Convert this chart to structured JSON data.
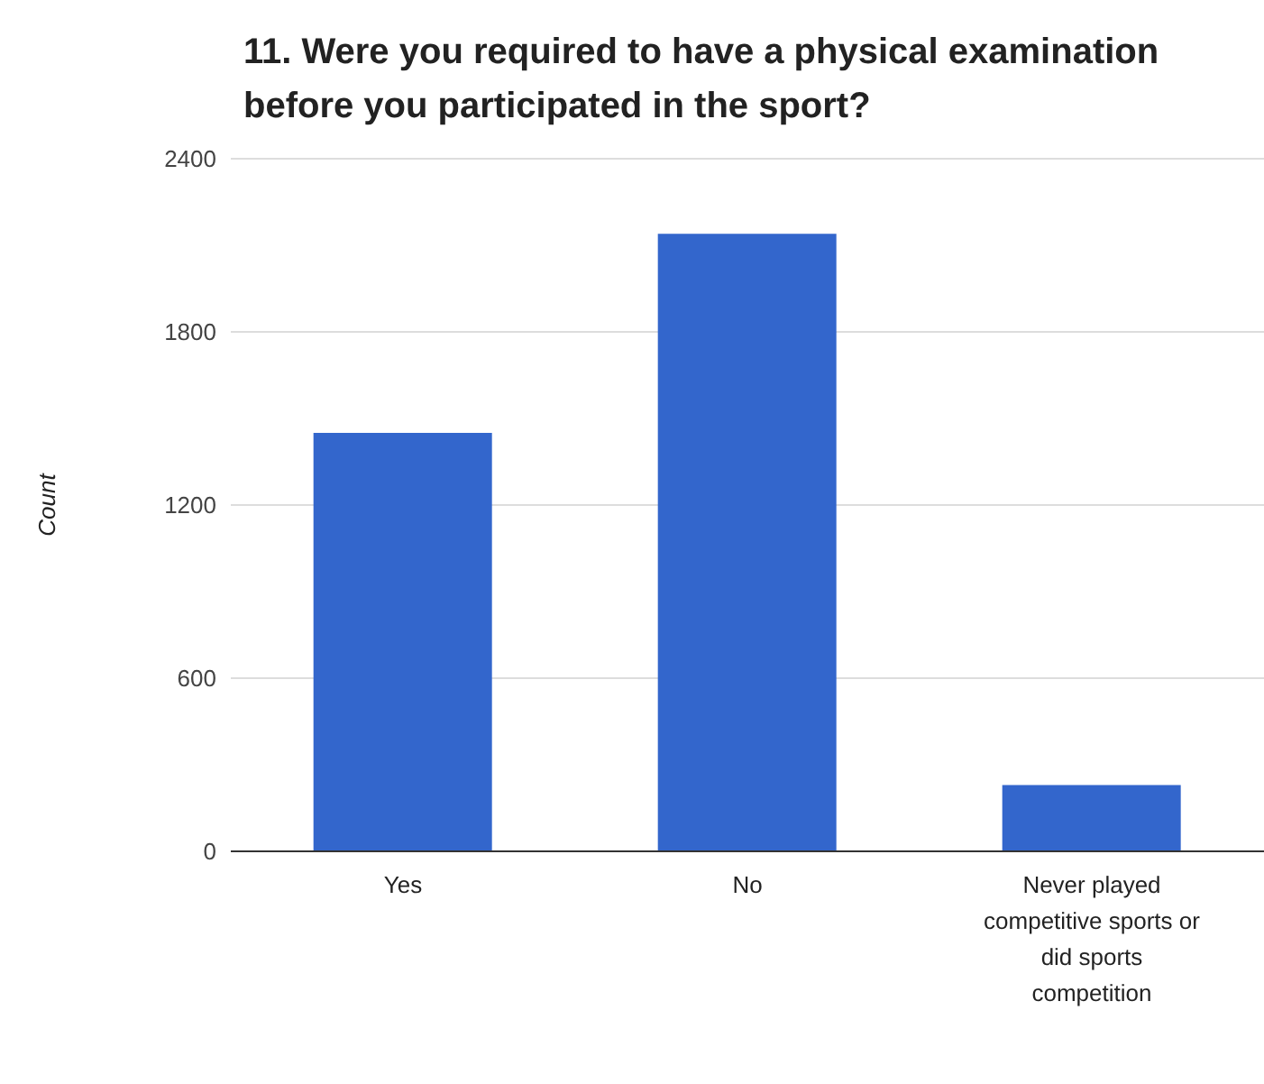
{
  "chart_data": {
    "type": "bar",
    "title": "11. Were you required to have a physical examination before you participated in the sport?",
    "ylabel": "Count",
    "categories": [
      "Yes",
      "No",
      "Never played competitive sports or did sports competition"
    ],
    "values": [
      1450,
      2140,
      230
    ],
    "color": "#3366cc",
    "ylim": [
      0,
      2400
    ],
    "yticks": [
      0,
      600,
      1200,
      1800,
      2400
    ],
    "grid": "y"
  }
}
